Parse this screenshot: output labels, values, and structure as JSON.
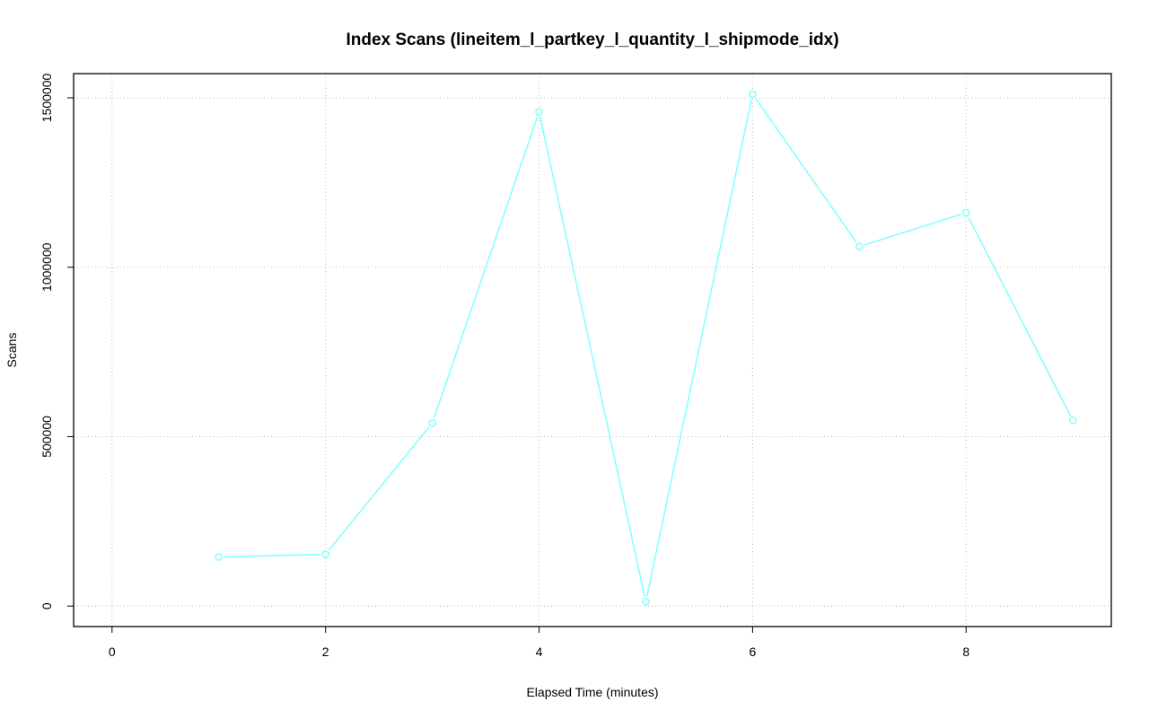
{
  "chart_data": {
    "type": "line",
    "title": "Index Scans (lineitem_l_partkey_l_quantity_l_shipmode_idx)",
    "xlabel": "Elapsed Time (minutes)",
    "ylabel": "Scans",
    "xlim": [
      0,
      9
    ],
    "ylim": [
      0,
      1511000
    ],
    "xticks": [
      "0",
      "2",
      "4",
      "6",
      "8"
    ],
    "yticks": [
      "0",
      "500000",
      "1000000",
      "1500000"
    ],
    "grid": true,
    "series": [
      {
        "color": "#7fffff",
        "x": [
          1,
          2,
          3,
          4,
          5,
          6,
          7,
          8,
          9
        ],
        "values": [
          145000,
          153000,
          540000,
          1458000,
          13000,
          1511000,
          1061000,
          1161000,
          548000
        ]
      }
    ]
  }
}
